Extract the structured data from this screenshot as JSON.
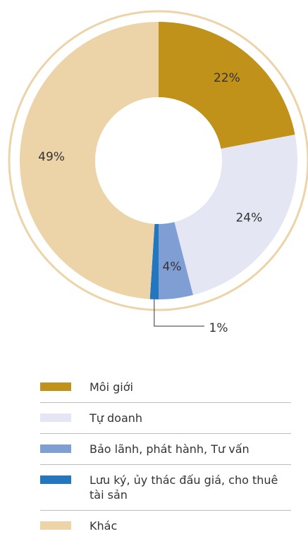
{
  "chart_data": {
    "type": "pie",
    "categories": [
      "Môi giới",
      "Tự doanh",
      "Bảo lãnh, phát hành, Tư vấn",
      "Lưu ký, ủy thác đấu giá, cho thuê tài sản",
      "Khác"
    ],
    "values": [
      22,
      24,
      4,
      1,
      49
    ],
    "value_labels": [
      "22%",
      "24%",
      "4%",
      "1%",
      "49%"
    ],
    "colors": [
      "#c0921a",
      "#e4e6f3",
      "#7f9fd4",
      "#2277c0",
      "#ecd4a8"
    ]
  }
}
